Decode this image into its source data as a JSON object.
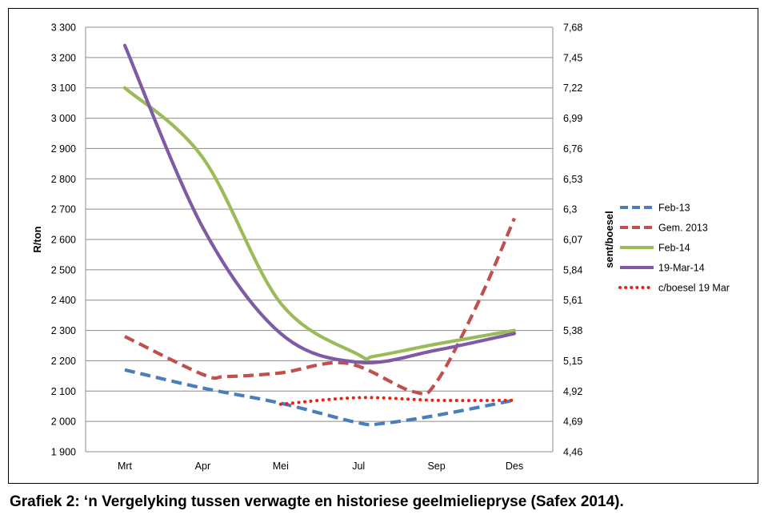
{
  "caption": "Grafiek 2: ‘n Vergelyking tussen verwagte en historiese geelmieliepryse (Safex 2014).",
  "chart_data": {
    "type": "line",
    "title": "",
    "categories": [
      "Mrt",
      "Apr",
      "Mei",
      "Jul",
      "Sep",
      "Des"
    ],
    "ylabel": "R/ton",
    "y2label": "sent/boesel",
    "ylim": [
      1900,
      3300
    ],
    "y2lim": [
      4.46,
      7.68
    ],
    "yticks": [
      "1 900",
      "2 000",
      "2 100",
      "2 200",
      "2 300",
      "2 400",
      "2 500",
      "2 600",
      "2 700",
      "2 800",
      "2 900",
      "3 000",
      "3 100",
      "3 200",
      "3 300"
    ],
    "y2ticks": [
      "4,46",
      "4,69",
      "4,92",
      "5,15",
      "5,38",
      "5,61",
      "5,84",
      "6,07",
      "6,3",
      "6,53",
      "6,76",
      "6,99",
      "7,22",
      "7,45",
      "7,68"
    ],
    "grid": true,
    "legend_position": "right",
    "series": [
      {
        "name": "Feb-13",
        "color": "#4a7ebb",
        "dash": "dashed",
        "axis": "left",
        "x": [
          0,
          1,
          2,
          3,
          3.3,
          4,
          5
        ],
        "values": [
          2170,
          2110,
          2060,
          1995,
          1993,
          2020,
          2070
        ]
      },
      {
        "name": "Gem. 2013",
        "color": "#c0504d",
        "dash": "dashed",
        "axis": "left",
        "x": [
          0,
          1,
          1.3,
          2,
          2.85,
          3.7,
          4,
          4.55,
          5
        ],
        "values": [
          2280,
          2155,
          2148,
          2160,
          2192,
          2098,
          2130,
          2400,
          2670
        ]
      },
      {
        "name": "Feb-14",
        "color": "#9bbb59",
        "dash": "solid",
        "axis": "left",
        "x": [
          0,
          1,
          2,
          3,
          3.2,
          4,
          5
        ],
        "values": [
          3100,
          2870,
          2390,
          2220,
          2215,
          2255,
          2300
        ]
      },
      {
        "name": "19-Mar-14",
        "color": "#7f5ba5",
        "dash": "solid",
        "axis": "left",
        "x": [
          0,
          1,
          2,
          3,
          4,
          5
        ],
        "values": [
          3240,
          2640,
          2290,
          2195,
          2235,
          2290
        ]
      },
      {
        "name": "c/boesel 19 Mar",
        "color": "#ee2211",
        "dash": "dotted",
        "axis": "right",
        "x": [
          2,
          3,
          4,
          5
        ],
        "values": [
          4.82,
          4.87,
          4.85,
          4.85
        ]
      }
    ]
  }
}
